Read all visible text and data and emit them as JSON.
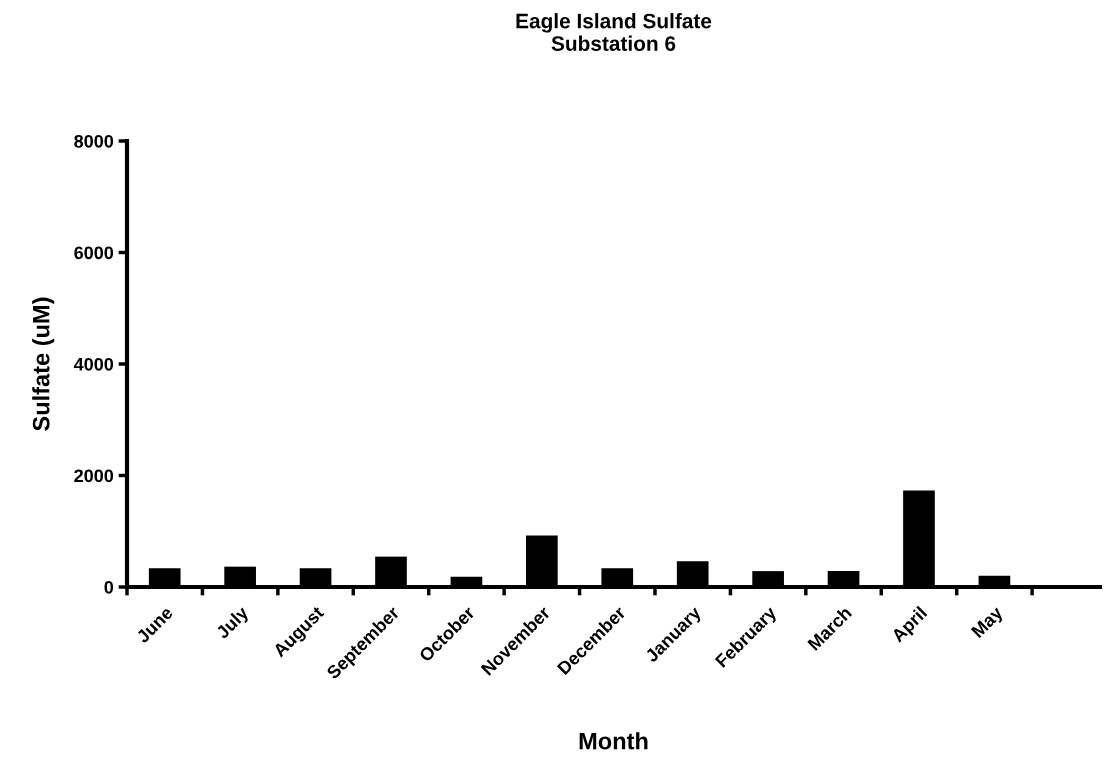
{
  "chart_data": {
    "type": "bar",
    "title": "Eagle Island Sulfate\nSubstation 6",
    "xlabel": "Month",
    "ylabel": "Sulfate (uM)",
    "categories": [
      "June",
      "July",
      "August",
      "September",
      "October",
      "November",
      "December",
      "January",
      "February",
      "March",
      "April",
      "May",
      null
    ],
    "values": [
      335,
      365,
      335,
      545,
      185,
      925,
      335,
      460,
      285,
      285,
      1730,
      200,
      null
    ],
    "color": "#000000",
    "ylim": [
      0,
      8000
    ],
    "yticks": [
      0,
      2000,
      4000,
      6000,
      8000
    ],
    "grid": false,
    "legend": false
  }
}
